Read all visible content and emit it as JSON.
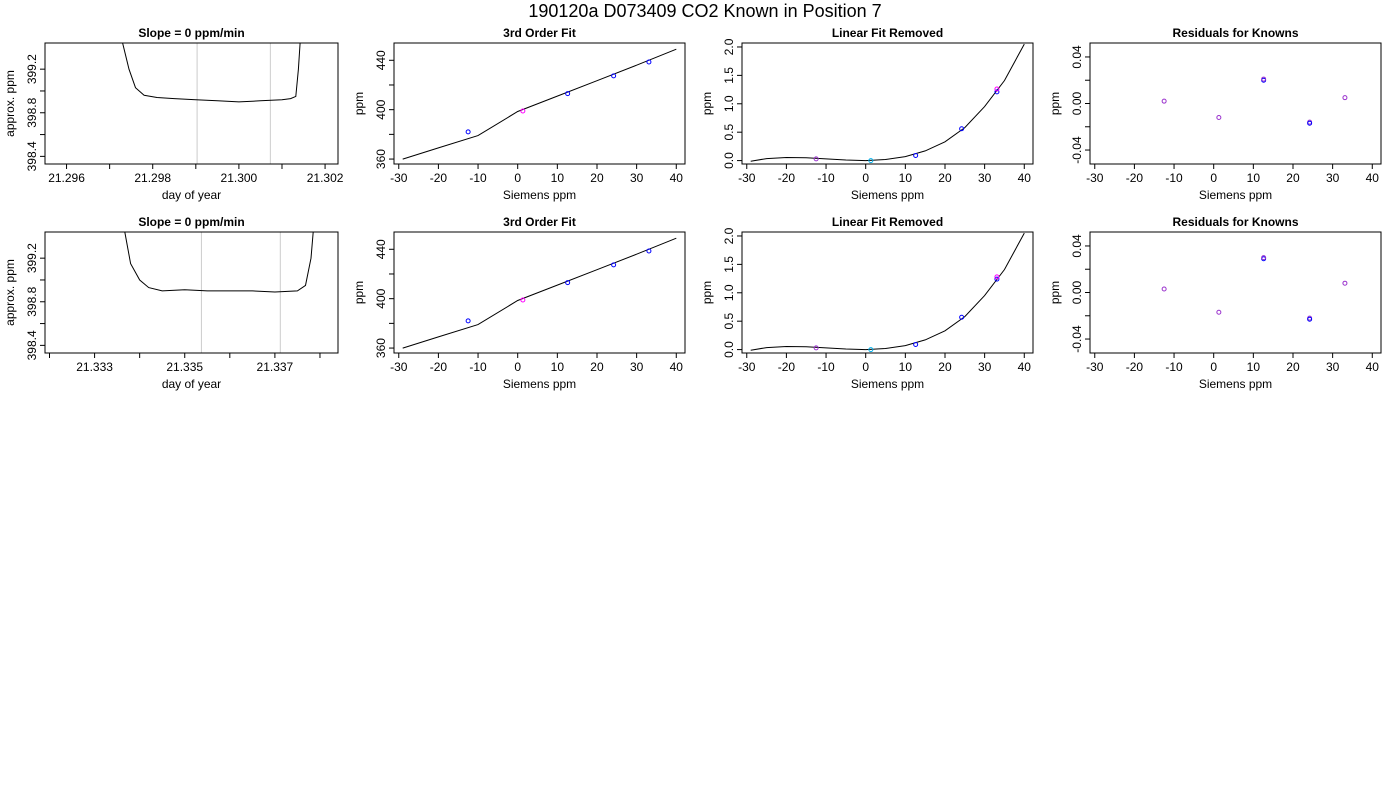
{
  "title": "190120a     D073409   CO2 Known in Position  7",
  "colors": {
    "axis": "#000000",
    "line": "#000000",
    "marker_line": "#cccccc",
    "point_blue": "#0000ff",
    "point_purple": "#9a32cd",
    "point_cyan": "#00b2ee",
    "point_magenta": "#ff00ff"
  },
  "chart_data": [
    {
      "type": "line",
      "title": "Slope =  0  ppm/min",
      "xlabel": "day of year",
      "ylabel": "approx. ppm",
      "xlim": [
        21.2955,
        21.3023
      ],
      "ylim": [
        398.33,
        399.44
      ],
      "xticks": [
        21.296,
        21.297,
        21.298,
        21.299,
        21.3,
        21.301,
        21.302
      ],
      "xtick_labels": [
        "21.296",
        "",
        "21.298",
        "",
        "21.300",
        "",
        "21.302"
      ],
      "yticks": [
        398.4,
        398.6,
        398.8,
        399.0,
        399.2
      ],
      "ytick_labels": [
        "398.4",
        "",
        "398.8",
        "",
        "399.2"
      ],
      "vlines": [
        21.29903,
        21.30073
      ],
      "series": [
        {
          "x": [
            21.2973,
            21.29745,
            21.2976,
            21.2978,
            21.2981,
            21.2985,
            21.299,
            21.2995,
            21.3,
            21.3005,
            21.301,
            21.3012,
            21.30132,
            21.30138,
            21.30142
          ],
          "y": [
            399.44,
            399.2,
            399.03,
            398.96,
            398.94,
            398.93,
            398.92,
            398.91,
            398.9,
            398.91,
            398.92,
            398.93,
            398.95,
            399.2,
            399.44
          ]
        }
      ]
    },
    {
      "type": "scatter",
      "title": "3rd Order Fit",
      "xlabel": "Siemens ppm",
      "ylabel": "ppm",
      "xlim": [
        -31.2,
        42.2
      ],
      "ylim": [
        356,
        454
      ],
      "xticks": [
        -30,
        -20,
        -10,
        0,
        10,
        20,
        30,
        40
      ],
      "xtick_labels": [
        "-30",
        "-20",
        "-10",
        "0",
        "10",
        "20",
        "30",
        "40"
      ],
      "yticks": [
        360,
        380,
        400,
        420,
        440
      ],
      "ytick_labels": [
        "360",
        "",
        "400",
        "",
        "440"
      ],
      "fit_curve": {
        "x": [
          -29,
          -20,
          -10,
          0,
          10,
          20,
          30,
          40
        ],
        "y": [
          360,
          369,
          379,
          398.5,
          411,
          423.5,
          436,
          449
        ]
      },
      "points": [
        {
          "x": -12.5,
          "y": 382,
          "color": "blue"
        },
        {
          "x": 1.3,
          "y": 398.9,
          "color": "magenta"
        },
        {
          "x": 12.6,
          "y": 413,
          "color": "blue"
        },
        {
          "x": 24.2,
          "y": 427.4,
          "color": "blue"
        },
        {
          "x": 33.1,
          "y": 438.6,
          "color": "blue"
        }
      ]
    },
    {
      "type": "scatter",
      "title": "Linear Fit Removed",
      "xlabel": "Siemens ppm",
      "ylabel": "ppm",
      "xlim": [
        -31.2,
        42.2
      ],
      "ylim": [
        -0.06,
        2.07
      ],
      "xticks": [
        -30,
        -20,
        -10,
        0,
        10,
        20,
        30,
        40
      ],
      "xtick_labels": [
        "-30",
        "-20",
        "-10",
        "0",
        "10",
        "20",
        "30",
        "40"
      ],
      "yticks": [
        0.0,
        0.5,
        1.0,
        1.5,
        2.0
      ],
      "ytick_labels": [
        "0.0",
        "0.5",
        "1.0",
        "1.5",
        "2.0"
      ],
      "fit_curve": {
        "x": [
          -29,
          -25,
          -20,
          -15,
          -10,
          -5,
          0,
          5,
          10,
          15,
          20,
          25,
          30,
          35,
          40
        ],
        "y": [
          -0.01,
          0.035,
          0.055,
          0.05,
          0.03,
          0.01,
          0.0,
          0.02,
          0.07,
          0.17,
          0.33,
          0.58,
          0.95,
          1.41,
          2.05
        ]
      },
      "points": [
        {
          "x": -12.5,
          "y": 0.03,
          "color": "purple"
        },
        {
          "x": 1.3,
          "y": 0.0,
          "color": "cyan"
        },
        {
          "x": 12.6,
          "y": 0.09,
          "color": "blue"
        },
        {
          "x": 24.2,
          "y": 0.56,
          "color": "blue"
        },
        {
          "x": 33.1,
          "y": 1.21,
          "color": "blue"
        },
        {
          "x": 33.1,
          "y": 1.26,
          "color": "magenta"
        }
      ]
    },
    {
      "type": "scatter",
      "title": "Residuals for Knowns",
      "xlabel": "Siemens ppm",
      "ylabel": "ppm",
      "xlim": [
        -31.2,
        42.2
      ],
      "ylim": [
        -0.052,
        0.052
      ],
      "xticks": [
        -30,
        -20,
        -10,
        0,
        10,
        20,
        30,
        40
      ],
      "xtick_labels": [
        "-30",
        "-20",
        "-10",
        "0",
        "10",
        "20",
        "30",
        "40"
      ],
      "yticks": [
        -0.04,
        -0.02,
        0.0,
        0.02,
        0.04
      ],
      "ytick_labels": [
        "-0.04",
        "",
        "0.00",
        "",
        "0.04"
      ],
      "points": [
        {
          "x": -12.5,
          "y": 0.002,
          "color": "purple"
        },
        {
          "x": 1.3,
          "y": -0.012,
          "color": "purple"
        },
        {
          "x": 12.6,
          "y": 0.02,
          "color": "blue"
        },
        {
          "x": 12.6,
          "y": 0.021,
          "color": "purple"
        },
        {
          "x": 24.2,
          "y": -0.016,
          "color": "purple"
        },
        {
          "x": 24.2,
          "y": -0.017,
          "color": "blue"
        },
        {
          "x": 33.1,
          "y": 0.005,
          "color": "purple"
        }
      ]
    },
    {
      "type": "line",
      "title": "Slope =  0  ppm/min",
      "xlabel": "day of year",
      "ylabel": "approx. ppm",
      "xlim": [
        21.3319,
        21.3384
      ],
      "ylim": [
        398.33,
        399.44
      ],
      "xticks": [
        21.332,
        21.333,
        21.334,
        21.335,
        21.336,
        21.337,
        21.338
      ],
      "xtick_labels": [
        "",
        "21.333",
        "",
        "21.335",
        "",
        "21.337",
        ""
      ],
      "yticks": [
        398.4,
        398.6,
        398.8,
        399.0,
        399.2
      ],
      "ytick_labels": [
        "398.4",
        "",
        "398.8",
        "",
        "399.2"
      ],
      "vlines": [
        21.33537,
        21.33712
      ],
      "series": [
        {
          "x": [
            21.33367,
            21.3338,
            21.334,
            21.3342,
            21.3345,
            21.335,
            21.3355,
            21.336,
            21.3365,
            21.337,
            21.3375,
            21.33768,
            21.3378,
            21.33785
          ],
          "y": [
            399.44,
            399.15,
            399.0,
            398.93,
            398.9,
            398.91,
            398.9,
            398.9,
            398.9,
            398.89,
            398.9,
            398.95,
            399.2,
            399.44
          ]
        }
      ]
    },
    {
      "type": "scatter",
      "title": "3rd Order Fit",
      "xlabel": "Siemens ppm",
      "ylabel": "ppm",
      "xlim": [
        -31.2,
        42.2
      ],
      "ylim": [
        356,
        454
      ],
      "xticks": [
        -30,
        -20,
        -10,
        0,
        10,
        20,
        30,
        40
      ],
      "xtick_labels": [
        "-30",
        "-20",
        "-10",
        "0",
        "10",
        "20",
        "30",
        "40"
      ],
      "yticks": [
        360,
        380,
        400,
        420,
        440
      ],
      "ytick_labels": [
        "360",
        "",
        "400",
        "",
        "440"
      ],
      "fit_curve": {
        "x": [
          -29,
          -20,
          -10,
          0,
          10,
          20,
          30,
          40
        ],
        "y": [
          360,
          369,
          379,
          398.5,
          411,
          423.5,
          436,
          449
        ]
      },
      "points": [
        {
          "x": -12.5,
          "y": 382,
          "color": "blue"
        },
        {
          "x": 1.3,
          "y": 398.9,
          "color": "magenta"
        },
        {
          "x": 12.6,
          "y": 413,
          "color": "blue"
        },
        {
          "x": 24.2,
          "y": 427.4,
          "color": "blue"
        },
        {
          "x": 33.1,
          "y": 438.6,
          "color": "blue"
        }
      ]
    },
    {
      "type": "scatter",
      "title": "Linear Fit Removed",
      "xlabel": "Siemens ppm",
      "ylabel": "ppm",
      "xlim": [
        -31.2,
        42.2
      ],
      "ylim": [
        -0.06,
        2.07
      ],
      "xticks": [
        -30,
        -20,
        -10,
        0,
        10,
        20,
        30,
        40
      ],
      "xtick_labels": [
        "-30",
        "-20",
        "-10",
        "0",
        "10",
        "20",
        "30",
        "40"
      ],
      "yticks": [
        0.0,
        0.5,
        1.0,
        1.5,
        2.0
      ],
      "ytick_labels": [
        "0.0",
        "0.5",
        "1.0",
        "1.5",
        "2.0"
      ],
      "fit_curve": {
        "x": [
          -29,
          -25,
          -20,
          -15,
          -10,
          -5,
          0,
          5,
          10,
          15,
          20,
          25,
          30,
          35,
          40
        ],
        "y": [
          -0.01,
          0.035,
          0.055,
          0.05,
          0.03,
          0.01,
          0.0,
          0.02,
          0.07,
          0.17,
          0.33,
          0.58,
          0.95,
          1.41,
          2.05
        ]
      },
      "points": [
        {
          "x": -12.5,
          "y": 0.03,
          "color": "purple"
        },
        {
          "x": 1.3,
          "y": 0.0,
          "color": "cyan"
        },
        {
          "x": 12.6,
          "y": 0.09,
          "color": "blue"
        },
        {
          "x": 24.2,
          "y": 0.57,
          "color": "blue"
        },
        {
          "x": 33.1,
          "y": 1.24,
          "color": "blue"
        },
        {
          "x": 33.1,
          "y": 1.28,
          "color": "magenta"
        }
      ]
    },
    {
      "type": "scatter",
      "title": "Residuals for Knowns",
      "xlabel": "Siemens ppm",
      "ylabel": "ppm",
      "xlim": [
        -31.2,
        42.2
      ],
      "ylim": [
        -0.052,
        0.052
      ],
      "xticks": [
        -30,
        -20,
        -10,
        0,
        10,
        20,
        30,
        40
      ],
      "xtick_labels": [
        "-30",
        "-20",
        "-10",
        "0",
        "10",
        "20",
        "30",
        "40"
      ],
      "yticks": [
        -0.04,
        -0.02,
        0.0,
        0.02,
        0.04
      ],
      "ytick_labels": [
        "-0.04",
        "",
        "0.00",
        "",
        "0.04"
      ],
      "points": [
        {
          "x": -12.5,
          "y": 0.003,
          "color": "purple"
        },
        {
          "x": 1.3,
          "y": -0.017,
          "color": "purple"
        },
        {
          "x": 12.6,
          "y": 0.029,
          "color": "blue"
        },
        {
          "x": 12.6,
          "y": 0.03,
          "color": "purple"
        },
        {
          "x": 24.2,
          "y": -0.022,
          "color": "purple"
        },
        {
          "x": 24.2,
          "y": -0.023,
          "color": "blue"
        },
        {
          "x": 33.1,
          "y": 0.008,
          "color": "purple"
        }
      ]
    }
  ]
}
